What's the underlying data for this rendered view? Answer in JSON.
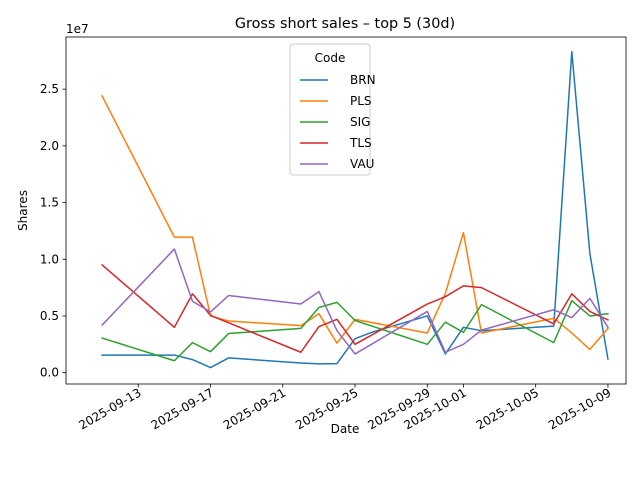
{
  "chart_data": {
    "type": "line",
    "title": "Gross short sales – top 5 (30d)",
    "xlabel": "Date",
    "ylabel": "Shares",
    "y_offset_label": "1e7",
    "xlim": [
      "2025-09-09",
      "2025-10-10"
    ],
    "ylim": [
      -1000000,
      29600000
    ],
    "x_ticks": [
      "2025-09-13",
      "2025-09-17",
      "2025-09-21",
      "2025-09-25",
      "2025-09-29",
      "2025-10-01",
      "2025-10-05",
      "2025-10-09"
    ],
    "y_ticks": [
      {
        "value": 0,
        "label": "0.0"
      },
      {
        "value": 5000000,
        "label": "0.5"
      },
      {
        "value": 10000000,
        "label": "1.0"
      },
      {
        "value": 15000000,
        "label": "1.5"
      },
      {
        "value": 20000000,
        "label": "2.0"
      },
      {
        "value": 25000000,
        "label": "2.5"
      }
    ],
    "grid": false,
    "legend": {
      "title": "Code",
      "placement": "top-center"
    },
    "series": [
      {
        "name": "BRN",
        "color": "#1f77b4",
        "points": [
          [
            "2025-09-11",
            1550000
          ],
          [
            "2025-09-15",
            1550000
          ],
          [
            "2025-09-16",
            1150000
          ],
          [
            "2025-09-17",
            450000
          ],
          [
            "2025-09-18",
            1300000
          ],
          [
            "2025-09-22",
            850000
          ],
          [
            "2025-09-23",
            780000
          ],
          [
            "2025-09-24",
            800000
          ],
          [
            "2025-09-25",
            3000000
          ],
          [
            "2025-09-26",
            3600000
          ],
          [
            "2025-09-29",
            5000000
          ],
          [
            "2025-09-30",
            1650000
          ],
          [
            "2025-10-01",
            4000000
          ],
          [
            "2025-10-02",
            3700000
          ],
          [
            "2025-10-06",
            4100000
          ],
          [
            "2025-10-07",
            28300000
          ],
          [
            "2025-10-08",
            10500000
          ],
          [
            "2025-10-09",
            1200000
          ]
        ]
      },
      {
        "name": "PLS",
        "color": "#ff7f0e",
        "points": [
          [
            "2025-09-11",
            24400000
          ],
          [
            "2025-09-15",
            11950000
          ],
          [
            "2025-09-16",
            11950000
          ],
          [
            "2025-09-17",
            5000000
          ],
          [
            "2025-09-18",
            4550000
          ],
          [
            "2025-09-22",
            4150000
          ],
          [
            "2025-09-23",
            5200000
          ],
          [
            "2025-09-24",
            2600000
          ],
          [
            "2025-09-25",
            4700000
          ],
          [
            "2025-09-29",
            3500000
          ],
          [
            "2025-09-30",
            7000000
          ],
          [
            "2025-10-01",
            12350000
          ],
          [
            "2025-10-02",
            3500000
          ],
          [
            "2025-10-06",
            4800000
          ],
          [
            "2025-10-07",
            3500000
          ],
          [
            "2025-10-08",
            2050000
          ],
          [
            "2025-10-09",
            3900000
          ]
        ]
      },
      {
        "name": "SIG",
        "color": "#2ca02c",
        "points": [
          [
            "2025-09-11",
            3050000
          ],
          [
            "2025-09-15",
            1050000
          ],
          [
            "2025-09-16",
            2650000
          ],
          [
            "2025-09-17",
            1850000
          ],
          [
            "2025-09-18",
            3450000
          ],
          [
            "2025-09-22",
            3900000
          ],
          [
            "2025-09-23",
            5750000
          ],
          [
            "2025-09-24",
            6200000
          ],
          [
            "2025-09-25",
            4600000
          ],
          [
            "2025-09-29",
            2500000
          ],
          [
            "2025-09-30",
            4450000
          ],
          [
            "2025-10-01",
            3550000
          ],
          [
            "2025-10-02",
            6000000
          ],
          [
            "2025-10-06",
            2650000
          ],
          [
            "2025-10-07",
            6350000
          ],
          [
            "2025-10-08",
            5000000
          ],
          [
            "2025-10-09",
            5200000
          ]
        ]
      },
      {
        "name": "TLS",
        "color": "#d62728",
        "points": [
          [
            "2025-09-11",
            9500000
          ],
          [
            "2025-09-15",
            4000000
          ],
          [
            "2025-09-16",
            6950000
          ],
          [
            "2025-09-17",
            5050000
          ],
          [
            "2025-09-22",
            1800000
          ],
          [
            "2025-09-23",
            4050000
          ],
          [
            "2025-09-24",
            4700000
          ],
          [
            "2025-09-25",
            2500000
          ],
          [
            "2025-09-29",
            6050000
          ],
          [
            "2025-09-30",
            6700000
          ],
          [
            "2025-10-01",
            7650000
          ],
          [
            "2025-10-02",
            7500000
          ],
          [
            "2025-10-06",
            4300000
          ],
          [
            "2025-10-07",
            6950000
          ],
          [
            "2025-10-08",
            5400000
          ],
          [
            "2025-10-09",
            4650000
          ]
        ]
      },
      {
        "name": "VAU",
        "color": "#9467bd",
        "points": [
          [
            "2025-09-11",
            4200000
          ],
          [
            "2025-09-15",
            10900000
          ],
          [
            "2025-09-16",
            6300000
          ],
          [
            "2025-09-17",
            5350000
          ],
          [
            "2025-09-18",
            6800000
          ],
          [
            "2025-09-22",
            6050000
          ],
          [
            "2025-09-23",
            7150000
          ],
          [
            "2025-09-24",
            3700000
          ],
          [
            "2025-09-25",
            1650000
          ],
          [
            "2025-09-29",
            5400000
          ],
          [
            "2025-09-30",
            1800000
          ],
          [
            "2025-10-01",
            2500000
          ],
          [
            "2025-10-02",
            3750000
          ],
          [
            "2025-10-06",
            5550000
          ],
          [
            "2025-10-07",
            4850000
          ],
          [
            "2025-10-08",
            6550000
          ],
          [
            "2025-10-09",
            4000000
          ]
        ]
      }
    ]
  }
}
